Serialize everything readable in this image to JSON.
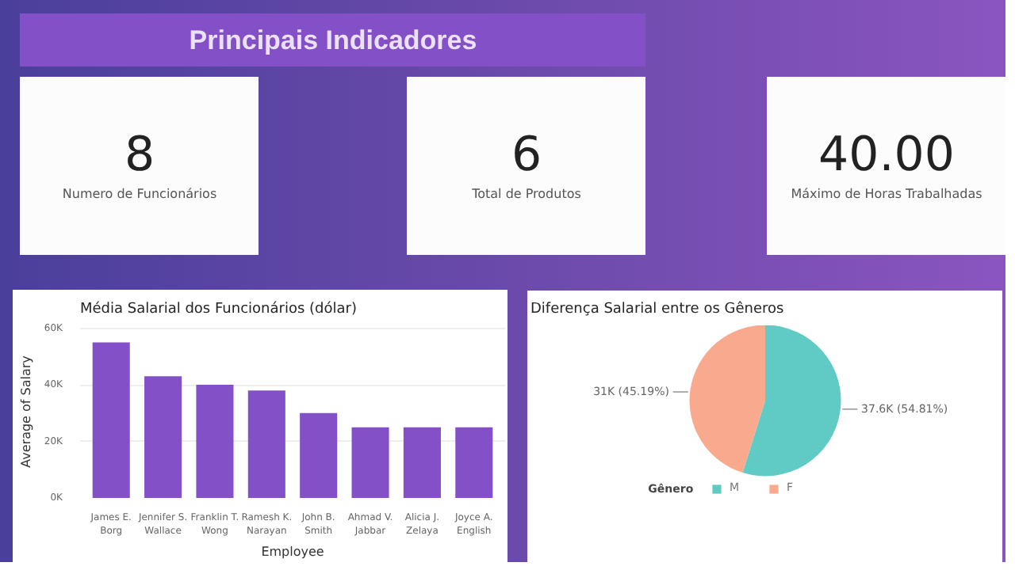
{
  "chart_data": [
    {
      "type": "other",
      "title": "Principais Indicadores"
    },
    {
      "type": "other",
      "annotations": [
        "8",
        "Numero de Funcionários"
      ]
    },
    {
      "type": "other",
      "annotations": [
        "6",
        "Total de Produtos"
      ]
    },
    {
      "type": "other",
      "annotations": [
        "40.00",
        "Máximo de Horas Trabalhadas"
      ]
    },
    {
      "type": "bar",
      "title": "Média Salarial dos Funcionários (dólar)",
      "xlabel": "Employee",
      "ylabel": "Average of Salary",
      "categories": [
        "James E. Borg",
        "Jennifer S. Wallace",
        "Franklin T. Wong",
        "Ramesh K. Narayan",
        "John B. Smith",
        "Ahmad V. Jabbar",
        "Alicia J. Zelaya",
        "Joyce A. English"
      ],
      "values": [
        55000,
        43000,
        40000,
        38000,
        30000,
        25000,
        25000,
        25000
      ],
      "color": "#8350c8",
      "ylim": [
        0,
        61000
      ],
      "yticks": [
        {
          "value": 0,
          "label": "0K"
        },
        {
          "value": 20000,
          "label": "20K"
        },
        {
          "value": 40000,
          "label": "40K"
        },
        {
          "value": 60000,
          "label": "60K"
        }
      ],
      "grid": "y"
    },
    {
      "type": "pie",
      "title": "Diferença Salarial entre os Gêneros",
      "legend_title": "Gênero",
      "categories": [
        "M",
        "F"
      ],
      "values": [
        37600,
        31000
      ],
      "colors": [
        "#5fcbc4",
        "#f9a98e"
      ],
      "value_labels": [
        "37.6K (54.81%)",
        "31K (45.19%)"
      ],
      "legend": "bottom"
    }
  ]
}
